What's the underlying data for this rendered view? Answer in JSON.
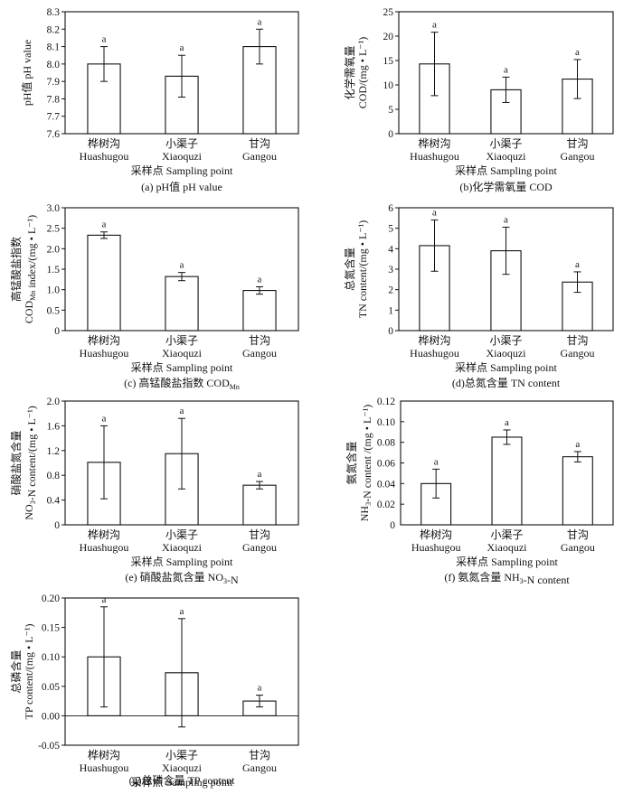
{
  "chart_data": [
    {
      "id": "a",
      "type": "bar",
      "categories": [
        "桦树沟 Huashugou",
        "小渠子 Xiaoquzi",
        "甘沟 Gangou"
      ],
      "cat_cn": [
        "桦树沟",
        "小渠子",
        "甘沟"
      ],
      "cat_en": [
        "Huashugou",
        "Xiaoquzi",
        "Gangou"
      ],
      "values": [
        8.0,
        7.93,
        8.1
      ],
      "errors": [
        0.1,
        0.12,
        0.1
      ],
      "significance": [
        "a",
        "a",
        "a"
      ],
      "ylim": [
        7.6,
        8.3
      ],
      "yticks": [
        "7.6",
        "7.7",
        "7.8",
        "7.9",
        "8.0",
        "8.1",
        "8.2",
        "8.3"
      ],
      "ylabel": "pH值 pH value",
      "xlabel": "采样点 Sampling point",
      "caption": "(a) pH值 pH value"
    },
    {
      "id": "b",
      "type": "bar",
      "categories": [
        "桦树沟 Huashugou",
        "小渠子 Xiaoquzi",
        "甘沟 Gangou"
      ],
      "cat_cn": [
        "桦树沟",
        "小渠子",
        "甘沟"
      ],
      "cat_en": [
        "Huashugou",
        "Xiaoquzi",
        "Gangou"
      ],
      "values": [
        14.3,
        9.0,
        11.2
      ],
      "errors": [
        6.5,
        2.6,
        4.0
      ],
      "significance": [
        "a",
        "a",
        "a"
      ],
      "ylim": [
        0,
        25
      ],
      "yticks": [
        "0",
        "5",
        "10",
        "15",
        "20",
        "25"
      ],
      "ylabel_cn": "化学需氧量",
      "ylabel_en": "COD/(mg • L⁻¹)",
      "xlabel": "采样点 Sampling point",
      "caption": "(b)化学需氧量 COD"
    },
    {
      "id": "c",
      "type": "bar",
      "categories": [
        "桦树沟 Huashugou",
        "小渠子 Xiaoquzi",
        "甘沟 Gangou"
      ],
      "cat_cn": [
        "桦树沟",
        "小渠子",
        "甘沟"
      ],
      "cat_en": [
        "Huashugou",
        "Xiaoquzi",
        "Gangou"
      ],
      "values": [
        2.33,
        1.32,
        0.98
      ],
      "errors": [
        0.08,
        0.1,
        0.09
      ],
      "significance": [
        "a",
        "a",
        "a"
      ],
      "ylim": [
        0,
        3.0
      ],
      "yticks": [
        "0",
        "0.5",
        "1.0",
        "1.5",
        "2.0",
        "2.5",
        "3.0"
      ],
      "ylabel_cn": "高锰酸盐指数",
      "ylabel_en": "COD",
      "ylabel_sub": "Mn",
      "ylabel_rest": " index/(mg • L⁻¹)",
      "xlabel": "采样点 Sampling point",
      "caption": "(c) 高锰酸盐指数 COD",
      "caption_sub": "Mn"
    },
    {
      "id": "d",
      "type": "bar",
      "categories": [
        "桦树沟 Huashugou",
        "小渠子 Xiaoquzi",
        "甘沟 Gangou"
      ],
      "cat_cn": [
        "桦树沟",
        "小渠子",
        "甘沟"
      ],
      "cat_en": [
        "Huashugou",
        "Xiaoquzi",
        "Gangou"
      ],
      "values": [
        4.15,
        3.9,
        2.37
      ],
      "errors": [
        1.25,
        1.15,
        0.5
      ],
      "significance": [
        "a",
        "a",
        "a"
      ],
      "ylim": [
        0,
        6
      ],
      "yticks": [
        "0",
        "1",
        "2",
        "3",
        "4",
        "5",
        "6"
      ],
      "ylabel_cn": "总氮含量",
      "ylabel_en": "TN content/(mg • L⁻¹)",
      "xlabel": "采样点 Sampling point",
      "caption": "(d)总氮含量 TN content"
    },
    {
      "id": "e",
      "type": "bar",
      "categories": [
        "桦树沟 Huashugou",
        "小渠子 Xiaoquzi",
        "甘沟 Gangou"
      ],
      "cat_cn": [
        "桦树沟",
        "小渠子",
        "甘沟"
      ],
      "cat_en": [
        "Huashugou",
        "Xiaoquzi",
        "Gangou"
      ],
      "values": [
        1.01,
        1.15,
        0.64
      ],
      "errors": [
        0.59,
        0.57,
        0.06
      ],
      "significance": [
        "a",
        "a",
        "a"
      ],
      "ylim": [
        0,
        2.0
      ],
      "yticks": [
        "0",
        "0.4",
        "0.8",
        "1.2",
        "1.6",
        "2.0"
      ],
      "ylabel_cn": "硝酸盐氮含量",
      "ylabel_en": "NO",
      "ylabel_sub": "3",
      "ylabel_rest": "-N content/(mg • L⁻¹)",
      "xlabel": "采样点 Sampling point",
      "caption": "(e) 硝酸盐氮含量 NO",
      "caption_sub": "3",
      "caption_rest": "-N"
    },
    {
      "id": "f",
      "type": "bar",
      "categories": [
        "桦树沟 Huashugou",
        "小渠子 Xiaoquzi",
        "甘沟 Gangou"
      ],
      "cat_cn": [
        "桦树沟",
        "小渠子",
        "甘沟"
      ],
      "cat_en": [
        "Huashugou",
        "Xiaoquzi",
        "Gangou"
      ],
      "values": [
        0.04,
        0.085,
        0.066
      ],
      "errors": [
        0.014,
        0.007,
        0.005
      ],
      "significance": [
        "a",
        "a",
        "a"
      ],
      "ylim": [
        0,
        0.12
      ],
      "yticks": [
        "0",
        "0.02",
        "0.04",
        "0.06",
        "0.08",
        "0.10",
        "0.12"
      ],
      "ylabel_cn": "氨氮含量",
      "ylabel_en": "NH",
      "ylabel_sub": "3",
      "ylabel_rest": "-N content /(mg • L⁻¹)",
      "xlabel": "采样点 Sampling point",
      "caption": "(f) 氨氮含量 NH",
      "caption_sub": "3",
      "caption_rest": "-N content"
    },
    {
      "id": "g",
      "type": "bar",
      "categories": [
        "桦树沟 Huashugou",
        "小渠子 Xiaoquzi",
        "甘沟 Gangou"
      ],
      "cat_cn": [
        "桦树沟",
        "小渠子",
        "甘沟"
      ],
      "cat_en": [
        "Huashugou",
        "Xiaoquzi",
        "Gangou"
      ],
      "values": [
        0.1,
        0.073,
        0.025
      ],
      "errors": [
        0.085,
        0.092,
        0.01
      ],
      "significance": [
        "a",
        "a",
        "a"
      ],
      "ylim": [
        -0.05,
        0.2
      ],
      "yticks": [
        "-0.05",
        "0.00",
        "0.05",
        "0.10",
        "0.15",
        "0.20"
      ],
      "ylabel_cn": "总磷含量",
      "ylabel_en": "TP content/(mg • L⁻¹)",
      "xlabel": "采样点 Sampling point",
      "caption": "(g)总磷含量 TP content"
    }
  ]
}
